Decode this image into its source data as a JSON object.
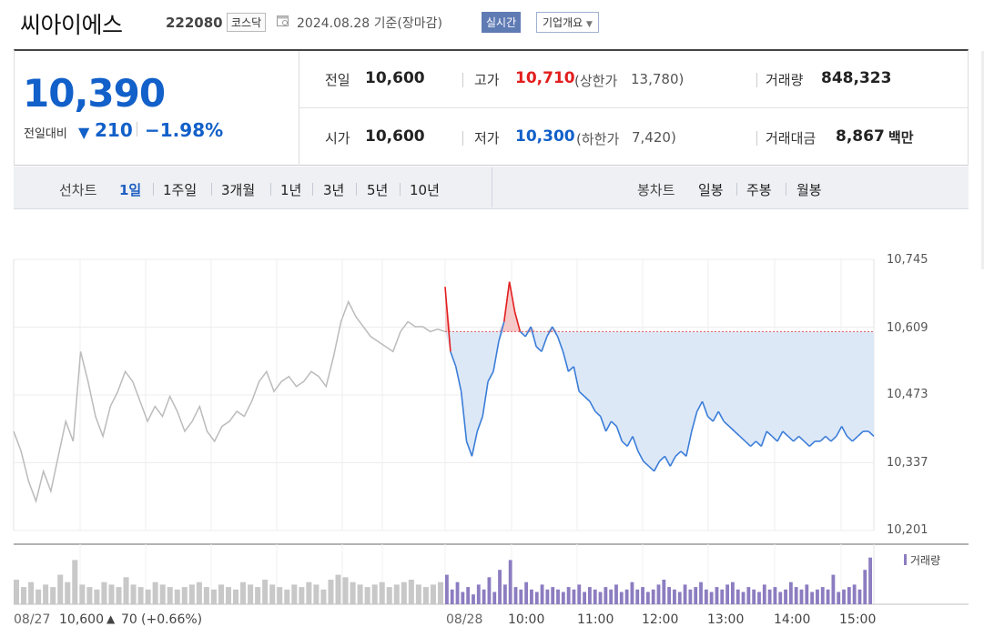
{
  "header": {
    "name": "씨아이에스",
    "code": "222080",
    "market": "코스닥",
    "date": "2024.08.28 기준(장마감)",
    "realtime_button": "실시간",
    "info_button": "기업개요"
  },
  "summary": {
    "price": "10,390",
    "change_label": "전일대비",
    "change_arrow": "▼",
    "change_value": "210",
    "change_pct": "−1.98%",
    "prev_close_label": "전일",
    "prev_close": "10,600",
    "high_label": "고가",
    "high": "10,710",
    "upper_limit_label": "(상한가",
    "upper_limit": "13,780)",
    "volume_label": "거래량",
    "volume": "848,323",
    "open_label": "시가",
    "open": "10,600",
    "low_label": "저가",
    "low": "10,300",
    "lower_limit_label": "(하한가",
    "lower_limit": "7,420)",
    "amount_label": "거래대금",
    "amount": "8,867",
    "amount_unit": "백만"
  },
  "toolbar": {
    "line_chart_label": "선차트",
    "periods": [
      "1일",
      "1주일",
      "3개월",
      "1년",
      "3년",
      "5년",
      "10년"
    ],
    "candle_label": "봉차트",
    "candles": [
      "일봉",
      "주봉",
      "월봉"
    ]
  },
  "colors": {
    "up": "#e31e1e",
    "down": "#1260c9",
    "today_line": "#3b7dd8",
    "prev_line": "#bbbbbb",
    "fill": "#dde8f7",
    "volume_today": "#8c7cc0",
    "volume_prev": "#c8c8c8"
  },
  "chart_data": {
    "type": "line",
    "ylim": [
      10201,
      10745
    ],
    "yticks": [
      "10,745",
      "10,609",
      "10,473",
      "10,337",
      "10,201"
    ],
    "base_price": 10600,
    "volume_label": "거래량",
    "x_labels": [
      "08/27",
      "08/28",
      "10:00",
      "11:00",
      "12:00",
      "13:00",
      "14:00",
      "15:00"
    ],
    "prev_day_footer": {
      "date": "08/27",
      "price": "10,600",
      "arrow": "▲",
      "change": "70",
      "pct": "(+0.66%)"
    },
    "prev_day_series": [
      10400,
      10360,
      10300,
      10260,
      10320,
      10280,
      10350,
      10420,
      10380,
      10560,
      10500,
      10430,
      10390,
      10450,
      10480,
      10520,
      10500,
      10460,
      10420,
      10450,
      10430,
      10470,
      10440,
      10400,
      10420,
      10450,
      10400,
      10380,
      10410,
      10420,
      10440,
      10430,
      10460,
      10500,
      10520,
      10480,
      10500,
      10510,
      10490,
      10500,
      10520,
      10510,
      10490,
      10550,
      10620,
      10660,
      10630,
      10610,
      10590,
      10580,
      10570,
      10560,
      10600,
      10620,
      10610,
      10610,
      10600,
      10605,
      10600
    ],
    "today_series": [
      10690,
      10560,
      10530,
      10480,
      10380,
      10350,
      10400,
      10430,
      10500,
      10520,
      10580,
      10620,
      10700,
      10640,
      10600,
      10590,
      10610,
      10570,
      10560,
      10590,
      10610,
      10590,
      10560,
      10520,
      10530,
      10480,
      10470,
      10460,
      10440,
      10430,
      10400,
      10420,
      10410,
      10380,
      10370,
      10390,
      10360,
      10340,
      10330,
      10320,
      10340,
      10350,
      10330,
      10350,
      10360,
      10350,
      10400,
      10440,
      10460,
      10430,
      10420,
      10440,
      10420,
      10410,
      10400,
      10390,
      10380,
      10370,
      10380,
      10370,
      10400,
      10390,
      10380,
      10400,
      10390,
      10380,
      10390,
      10380,
      10370,
      10380,
      10380,
      10390,
      10380,
      10390,
      10410,
      10390,
      10380,
      10390,
      10400,
      10400,
      10390
    ],
    "today_volume": [
      60,
      30,
      45,
      25,
      35,
      20,
      40,
      30,
      55,
      25,
      70,
      40,
      90,
      35,
      30,
      45,
      30,
      25,
      40,
      30,
      35,
      30,
      25,
      35,
      30,
      40,
      25,
      35,
      30,
      25,
      35,
      30,
      40,
      25,
      30,
      45,
      30,
      35,
      25,
      30,
      40,
      50,
      35,
      30,
      25,
      40,
      30,
      35,
      45,
      30,
      25,
      35,
      30,
      40,
      45,
      30,
      25,
      35,
      30,
      25,
      40,
      30,
      35,
      25,
      30,
      45,
      35,
      30,
      40,
      25,
      30,
      35,
      30,
      60,
      25,
      30,
      35,
      40,
      30,
      70,
      95
    ],
    "prev_volume": [
      50,
      35,
      45,
      30,
      40,
      35,
      60,
      45,
      90,
      40,
      35,
      30,
      45,
      40,
      35,
      55,
      40,
      35,
      30,
      45,
      40,
      35,
      30,
      35,
      40,
      45,
      35,
      30,
      40,
      35,
      30,
      45,
      40,
      35,
      50,
      40,
      35,
      30,
      40,
      35,
      45,
      40,
      30,
      50,
      60,
      55,
      45,
      40,
      35,
      40,
      45,
      35,
      40,
      45,
      50,
      40,
      35,
      40,
      45
    ]
  }
}
